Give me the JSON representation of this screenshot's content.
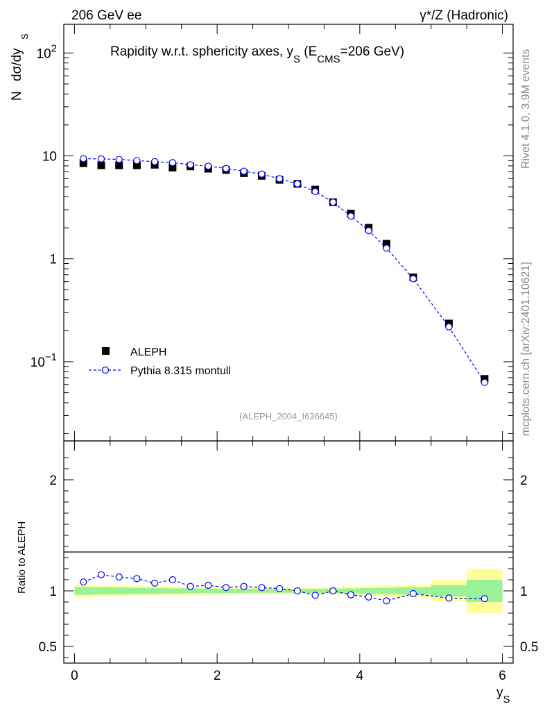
{
  "header": {
    "left": "206 GeV ee",
    "right_prefix": "γ*/Z (Hadronic)"
  },
  "side": {
    "rivet": "Rivet 4.1.0,  3.9M events",
    "mcplots": "mcplots.cern.ch [arXiv:2401.10621]"
  },
  "chart_data": {
    "type": "scatter",
    "title_parts": {
      "main": "Rapidity w.r.t. sphericity axes, y",
      "sub": "S",
      "mid": " (E",
      "sub2": "CMS",
      "end": "=206 GeV)"
    },
    "analysis_tag": "(ALEPH_2004_I636645)",
    "ylabel_parts": {
      "n": "N",
      "main": "dσ/dy",
      "sub": "S"
    },
    "xlabel_parts": {
      "main": "y",
      "sub": "S"
    },
    "ratio_ylabel": "Ratio to ALEPH",
    "x_ticks": [
      0,
      2,
      4,
      6
    ],
    "x_tick_labels": [
      "0",
      "2",
      "4",
      "6"
    ],
    "xlim": [
      -0.15,
      6.15
    ],
    "main_yscale": "log",
    "main_ylim": [
      0.017,
      190
    ],
    "main_major_ticks": [
      0.1,
      1,
      10,
      100
    ],
    "main_tick_labels": [
      {
        "base": "10",
        "exp": "−1"
      },
      {
        "base": "1",
        "exp": ""
      },
      {
        "base": "10",
        "exp": ""
      },
      {
        "base": "10",
        "exp": "2"
      }
    ],
    "ratio_ylim": [
      0.35,
      2.35
    ],
    "ratio_ticks": [
      0.5,
      1,
      2
    ],
    "ratio_tick_labels": [
      "0.5",
      "1",
      "2"
    ],
    "legend": [
      {
        "name": "ALEPH",
        "marker": "filled-square",
        "color": "#000000"
      },
      {
        "name": "Pythia 8.315 montull",
        "marker": "open-circle-dashed",
        "color": "#0000ff"
      }
    ],
    "series": [
      {
        "name": "ALEPH",
        "x": [
          0.125,
          0.375,
          0.625,
          0.875,
          1.125,
          1.375,
          1.625,
          1.875,
          2.125,
          2.375,
          2.625,
          2.875,
          3.125,
          3.375,
          3.625,
          3.875,
          4.125,
          4.375,
          4.75,
          5.25,
          5.75
        ],
        "y": [
          8.5,
          8.1,
          8.1,
          8.1,
          8.2,
          7.7,
          7.9,
          7.5,
          7.3,
          6.8,
          6.4,
          5.85,
          5.35,
          4.7,
          3.55,
          2.75,
          2.0,
          1.4,
          0.66,
          0.235,
          0.068
        ]
      },
      {
        "name": "Pythia 8.315 montull",
        "x": [
          0.125,
          0.375,
          0.625,
          0.875,
          1.125,
          1.375,
          1.625,
          1.875,
          2.125,
          2.375,
          2.625,
          2.875,
          3.125,
          3.375,
          3.625,
          3.875,
          4.125,
          4.375,
          4.75,
          5.25,
          5.75
        ],
        "y": [
          9.4,
          9.35,
          9.25,
          9.0,
          8.8,
          8.6,
          8.2,
          7.95,
          7.55,
          7.1,
          6.65,
          6.0,
          5.35,
          4.5,
          3.55,
          2.6,
          1.88,
          1.27,
          0.64,
          0.218,
          0.063
        ],
        "ratio": [
          1.08,
          1.145,
          1.125,
          1.11,
          1.07,
          1.1,
          1.04,
          1.05,
          1.03,
          1.04,
          1.03,
          1.02,
          1.0,
          0.96,
          1.0,
          0.965,
          0.945,
          0.91,
          0.975,
          0.935,
          0.93
        ]
      }
    ],
    "uncertainty_bands": {
      "bin_edges": [
        0,
        0.25,
        0.5,
        0.75,
        1.0,
        1.25,
        1.5,
        1.75,
        2.0,
        2.25,
        2.5,
        2.75,
        3.0,
        3.25,
        3.5,
        3.75,
        4.0,
        4.25,
        4.5,
        5.0,
        5.5,
        6.0
      ],
      "stat_lo": [
        0.965,
        0.968,
        0.97,
        0.972,
        0.975,
        0.977,
        0.978,
        0.98,
        0.981,
        0.982,
        0.983,
        0.983,
        0.983,
        0.982,
        0.98,
        0.978,
        0.975,
        0.972,
        0.968,
        0.95,
        0.9
      ],
      "stat_hi": [
        1.035,
        1.032,
        1.03,
        1.028,
        1.025,
        1.023,
        1.022,
        1.02,
        1.019,
        1.018,
        1.017,
        1.017,
        1.017,
        1.018,
        1.02,
        1.022,
        1.025,
        1.028,
        1.032,
        1.05,
        1.1
      ],
      "tot_lo": [
        0.945,
        0.948,
        0.952,
        0.955,
        0.958,
        0.96,
        0.962,
        0.965,
        0.967,
        0.969,
        0.97,
        0.97,
        0.97,
        0.968,
        0.965,
        0.96,
        0.955,
        0.95,
        0.945,
        0.905,
        0.8
      ],
      "tot_hi": [
        1.055,
        1.052,
        1.048,
        1.045,
        1.042,
        1.04,
        1.038,
        1.035,
        1.033,
        1.031,
        1.03,
        1.03,
        1.03,
        1.032,
        1.035,
        1.04,
        1.045,
        1.05,
        1.055,
        1.095,
        1.2
      ],
      "stat_color": "#99f199",
      "syst_color": "#ffff99"
    }
  }
}
